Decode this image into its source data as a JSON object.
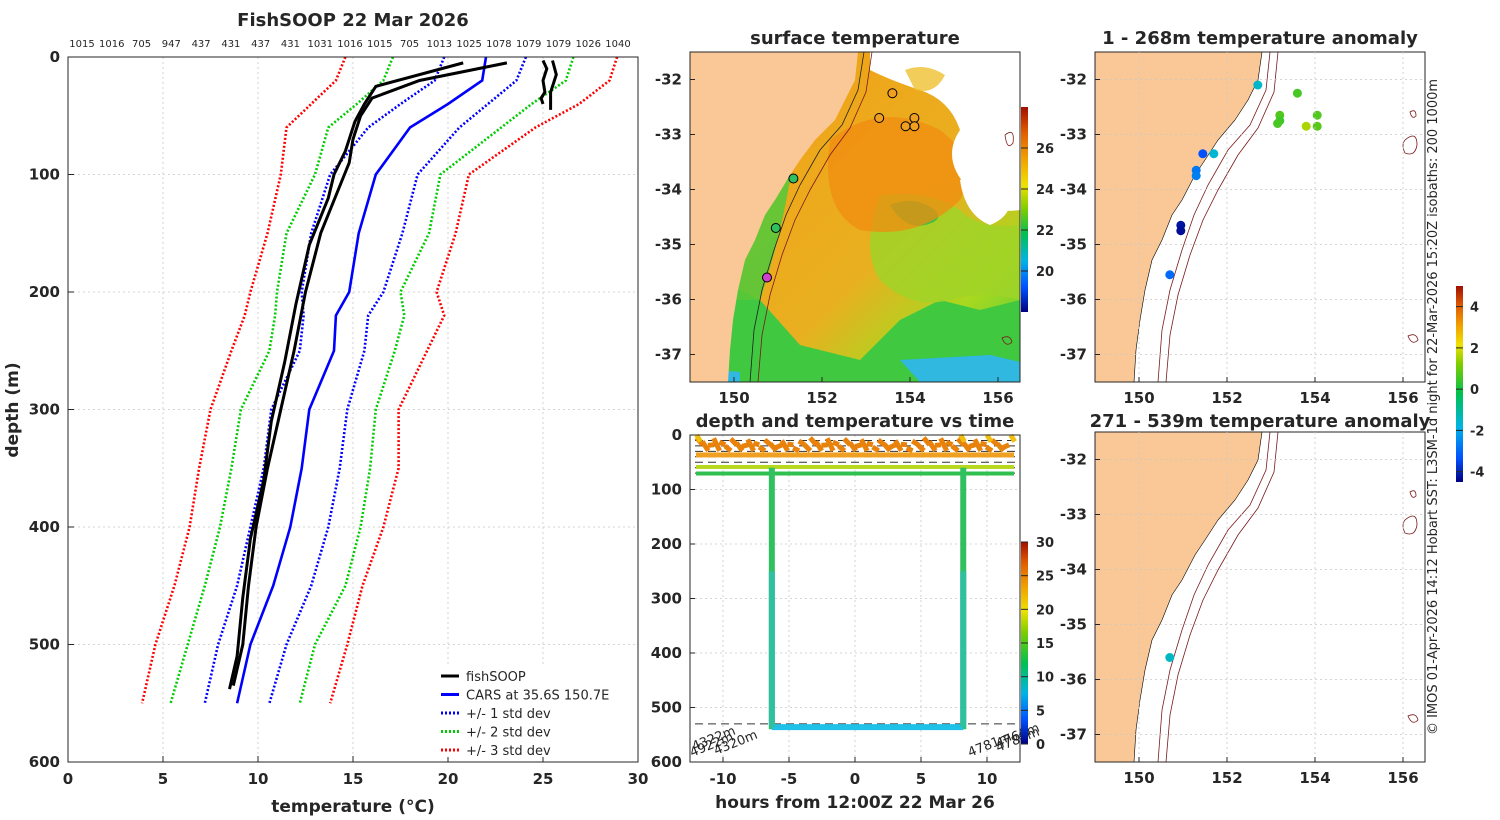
{
  "figure": {
    "side_label": "© IMOS 01-Apr-2026 14:12 Hobart SST: L3SM-1d night for 22-Mar-2026 15:20Z isobaths: 200  1000m"
  },
  "chart_data": [
    {
      "id": "profile",
      "type": "line",
      "title": "FishSOOP 22 Mar 2026",
      "xlabel": "temperature (°C)",
      "ylabel": "depth (m)",
      "xlim": [
        0,
        30
      ],
      "ylim": [
        600,
        0
      ],
      "xticks": [
        "0",
        "5",
        "10",
        "15",
        "20",
        "25",
        "30"
      ],
      "yticks": [
        "0",
        "100",
        "200",
        "300",
        "400",
        "500",
        "600"
      ],
      "top_depth_labels": [
        "1015",
        "1016",
        "705",
        "947",
        "437",
        "431",
        "437",
        "431",
        "1031",
        "1016",
        "1015",
        "705",
        "1013",
        "1025",
        "1078",
        "1079",
        "1079",
        "1026",
        "1040"
      ],
      "legend": {
        "placement": "bottom-right",
        "entries": [
          {
            "label": "fishSOOP",
            "color": "#000000",
            "style": "solid"
          },
          {
            "label": "CARS at 35.6S 150.7E",
            "color": "#0000ff",
            "style": "solid"
          },
          {
            "label": "+/- 1 std dev",
            "color": "#0000ff",
            "style": "dotted"
          },
          {
            "label": "+/- 2 std dev",
            "color": "#00cc00",
            "style": "dotted"
          },
          {
            "label": "+/- 3 std dev",
            "color": "#ff0000",
            "style": "dotted"
          }
        ]
      },
      "depth": [
        0,
        20,
        40,
        60,
        100,
        150,
        200,
        220,
        250,
        300,
        350,
        400,
        450,
        500,
        550
      ],
      "series": [
        {
          "name": "CARS at 35.6S 150.7E",
          "color": "#0000ff",
          "style": "solid",
          "values": [
            22.0,
            21.8,
            20.0,
            18.0,
            16.2,
            15.3,
            14.8,
            14.1,
            14.0,
            12.7,
            12.3,
            11.7,
            10.8,
            9.6,
            8.9
          ]
        },
        {
          "name": "+/- 1 std dev low",
          "color": "#0000ff",
          "style": "dotted",
          "values": [
            19.8,
            19.3,
            17.5,
            15.8,
            13.8,
            12.8,
            12.3,
            12.4,
            12.2,
            10.7,
            10.3,
            9.6,
            8.9,
            7.9,
            7.2
          ]
        },
        {
          "name": "+/- 1 std dev high",
          "color": "#0000ff",
          "style": "dotted",
          "values": [
            24.1,
            23.6,
            22.1,
            20.6,
            18.4,
            17.6,
            16.6,
            15.8,
            15.6,
            14.7,
            14.3,
            13.7,
            12.8,
            11.5,
            10.6
          ]
        },
        {
          "name": "+/- 2 std dev low",
          "color": "#00cc00",
          "style": "dotted",
          "values": [
            17.1,
            16.6,
            15.2,
            13.7,
            13.0,
            11.5,
            11.0,
            10.9,
            10.6,
            9.1,
            8.6,
            8.0,
            7.2,
            6.3,
            5.4
          ]
        },
        {
          "name": "+/- 2 std dev high",
          "color": "#00cc00",
          "style": "dotted",
          "values": [
            26.6,
            26.2,
            24.4,
            22.8,
            19.6,
            19.0,
            17.5,
            17.7,
            17.2,
            16.2,
            15.9,
            15.4,
            14.6,
            13.0,
            12.2
          ]
        },
        {
          "name": "+/- 3 std dev low",
          "color": "#ff0000",
          "style": "dotted",
          "values": [
            14.6,
            14.1,
            12.8,
            11.5,
            11.2,
            10.5,
            9.6,
            9.3,
            8.6,
            7.5,
            6.9,
            6.4,
            5.6,
            4.6,
            3.9
          ]
        },
        {
          "name": "+/- 3 std dev high",
          "color": "#ff0000",
          "style": "dotted",
          "values": [
            28.9,
            28.5,
            26.9,
            24.6,
            21.1,
            20.4,
            19.4,
            19.8,
            18.9,
            17.4,
            17.4,
            16.6,
            15.5,
            14.7,
            13.8
          ]
        }
      ],
      "fishsoop": [
        {
          "depth": [
            5,
            20,
            35,
            50,
            70,
            90,
            110,
            150,
            200,
            250,
            300,
            350,
            400,
            450,
            500,
            535
          ],
          "values": [
            23.1,
            18.5,
            16.0,
            15.4,
            15.0,
            14.8,
            14.3,
            13.3,
            12.5,
            11.9,
            11.2,
            10.5,
            9.9,
            9.5,
            9.2,
            8.7
          ]
        },
        {
          "depth": [
            5,
            25,
            40,
            55,
            80,
            100,
            120,
            160,
            210,
            260,
            310,
            360,
            410,
            460,
            510,
            538
          ],
          "values": [
            20.8,
            16.2,
            15.6,
            15.1,
            14.6,
            14.0,
            13.7,
            12.7,
            12.0,
            11.4,
            10.7,
            10.3,
            9.6,
            9.2,
            8.9,
            8.5
          ]
        },
        {
          "depth": [
            3,
            10,
            20,
            30,
            35,
            40
          ],
          "values": [
            25.0,
            25.2,
            25.0,
            25.1,
            24.9,
            25.0
          ]
        },
        {
          "depth": [
            3,
            15,
            30,
            45
          ],
          "values": [
            25.5,
            25.7,
            25.4,
            25.4
          ]
        }
      ]
    },
    {
      "id": "sst",
      "type": "heatmap",
      "title": "surface temperature",
      "xticks": [
        "150",
        "152",
        "154",
        "156"
      ],
      "yticks": [
        "-32",
        "-33",
        "-34",
        "-35",
        "-36",
        "-37"
      ],
      "xlim": [
        149.0,
        156.5
      ],
      "ylim": [
        -37.5,
        -31.5
      ],
      "colorbar_ticks": [
        "20",
        "22",
        "24",
        "26"
      ],
      "colorbar_range": [
        18,
        28
      ],
      "obs_points": [
        {
          "lon": 153.9,
          "lat": -32.85,
          "color": "#f0a020"
        },
        {
          "lon": 154.1,
          "lat": -32.7,
          "color": "#f0a020"
        },
        {
          "lon": 154.1,
          "lat": -32.85,
          "color": "#f0a020"
        },
        {
          "lon": 153.3,
          "lat": -32.7,
          "color": "#f0a020"
        },
        {
          "lon": 153.6,
          "lat": -32.25,
          "color": "#f0a020"
        },
        {
          "lon": 151.35,
          "lat": -33.8,
          "color": "#30c060"
        },
        {
          "lon": 150.95,
          "lat": -34.7,
          "color": "#30c060"
        },
        {
          "lon": 150.75,
          "lat": -35.6,
          "color": "#d040d0"
        }
      ]
    },
    {
      "id": "timeseries",
      "type": "line",
      "title": "depth and temperature vs time",
      "xlabel": "hours from 12:00Z 22 Mar 26",
      "xticks": [
        "-10",
        "-5",
        "0",
        "5",
        "10"
      ],
      "yticks": [
        "0",
        "100",
        "200",
        "300",
        "400",
        "500",
        "600"
      ],
      "xlim": [
        -12.5,
        12.5
      ],
      "ylim": [
        600,
        0
      ],
      "colorbar_ticks": [
        "0",
        "5",
        "10",
        "15",
        "20",
        "25",
        "30"
      ],
      "colorbar_range": [
        0,
        30
      ],
      "annotations": [
        "4922m",
        "4322m",
        "4320m",
        "4781m",
        "4788m",
        "4766m"
      ],
      "dashed_depths": [
        10,
        20,
        30,
        40,
        50,
        60,
        70,
        530
      ],
      "cast_left": {
        "hours": -6.3,
        "bottom": 540
      },
      "cast_right": {
        "hours": 8.2,
        "bottom": 540
      },
      "bottom_temp": 9
    },
    {
      "id": "anom_shallow",
      "type": "scatter",
      "title": "1 - 268m temperature anomaly",
      "xticks": [
        "150",
        "152",
        "154",
        "156"
      ],
      "yticks": [
        "-32",
        "-33",
        "-34",
        "-35",
        "-36",
        "-37"
      ],
      "xlim": [
        149.0,
        156.5
      ],
      "ylim": [
        -37.5,
        -31.5
      ],
      "colorbar_ticks": [
        "4",
        "2",
        "0",
        "-2",
        "-4"
      ],
      "colorbar_range": [
        -4.5,
        5
      ],
      "points": [
        {
          "lon": 152.7,
          "lat": -32.1,
          "anom": -1.5
        },
        {
          "lon": 153.6,
          "lat": -32.25,
          "anom": 0.6
        },
        {
          "lon": 153.2,
          "lat": -32.65,
          "anom": 0.7
        },
        {
          "lon": 153.2,
          "lat": -32.75,
          "anom": 0.5
        },
        {
          "lon": 153.15,
          "lat": -32.8,
          "anom": 0.6
        },
        {
          "lon": 154.05,
          "lat": -32.65,
          "anom": 0.7
        },
        {
          "lon": 154.05,
          "lat": -32.85,
          "anom": 0.8
        },
        {
          "lon": 153.8,
          "lat": -32.85,
          "anom": 1.6
        },
        {
          "lon": 151.45,
          "lat": -33.35,
          "anom": -3.3
        },
        {
          "lon": 151.7,
          "lat": -33.35,
          "anom": -1.6
        },
        {
          "lon": 151.3,
          "lat": -33.65,
          "anom": -2.7
        },
        {
          "lon": 151.3,
          "lat": -33.75,
          "anom": -2.6
        },
        {
          "lon": 150.95,
          "lat": -34.65,
          "anom": -4.2
        },
        {
          "lon": 150.95,
          "lat": -34.75,
          "anom": -4.3
        },
        {
          "lon": 150.7,
          "lat": -35.55,
          "anom": -2.9
        }
      ]
    },
    {
      "id": "anom_deep",
      "type": "scatter",
      "title": "271 - 539m temperature anomaly",
      "xticks": [
        "150",
        "152",
        "154",
        "156"
      ],
      "yticks": [
        "-32",
        "-33",
        "-34",
        "-35",
        "-36",
        "-37"
      ],
      "xlim": [
        149.0,
        156.5
      ],
      "ylim": [
        -37.5,
        -31.5
      ],
      "points": [
        {
          "lon": 150.7,
          "lat": -35.6,
          "anom": -1.4
        }
      ]
    }
  ]
}
